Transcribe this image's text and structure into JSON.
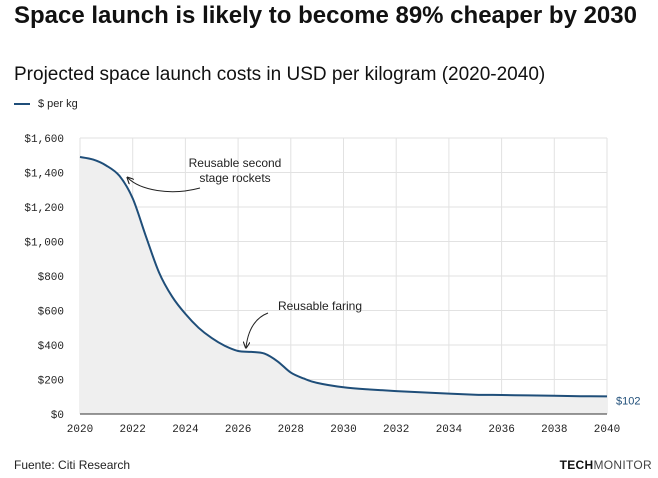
{
  "header": {
    "title": "Space launch is likely to become 89% cheaper by 2030",
    "subtitle": "Projected space launch costs in USD per kilogram (2020-2040)"
  },
  "legend": {
    "label": "$ per kg"
  },
  "footer": {
    "source": "Fuente: Citi Research",
    "brand_bold": "TECH",
    "brand_light": "MONITOR"
  },
  "colors": {
    "line": "#1f4e79",
    "area": "#efefef",
    "grid": "#e2e2e2",
    "axis": "#333333"
  },
  "chart_data": {
    "type": "area",
    "title": "Projected space launch costs in USD per kilogram (2020-2040)",
    "xlabel": "",
    "ylabel": "",
    "xlim": [
      2020,
      2040
    ],
    "ylim": [
      0,
      1600
    ],
    "x_ticks": [
      2020,
      2022,
      2024,
      2026,
      2028,
      2030,
      2032,
      2034,
      2036,
      2038,
      2040
    ],
    "x_tick_labels": [
      "2020",
      "2022",
      "2024",
      "2026",
      "2028",
      "2030",
      "2032",
      "2034",
      "2036",
      "2038",
      "2040"
    ],
    "y_ticks": [
      0,
      200,
      400,
      600,
      800,
      1000,
      1200,
      1400,
      1600
    ],
    "y_tick_labels": [
      "$0",
      "$200",
      "$400",
      "$600",
      "$800",
      "$1,000",
      "$1,200",
      "$1,400",
      "$1,600"
    ],
    "grid": true,
    "series": [
      {
        "name": "$ per kg",
        "x": [
          2020,
          2020.5,
          2021,
          2021.5,
          2022,
          2022.5,
          2023,
          2023.5,
          2024,
          2024.5,
          2025,
          2025.5,
          2026,
          2026.5,
          2027,
          2027.5,
          2028,
          2028.5,
          2029,
          2030,
          2031,
          2032,
          2033,
          2034,
          2035,
          2036,
          2037,
          2038,
          2039,
          2040
        ],
        "values": [
          1490,
          1475,
          1440,
          1380,
          1250,
          1030,
          820,
          680,
          580,
          500,
          440,
          395,
          365,
          360,
          350,
          305,
          240,
          205,
          180,
          155,
          142,
          133,
          125,
          118,
          112,
          110,
          108,
          106,
          103,
          102
        ]
      }
    ],
    "annotations": [
      {
        "label_lines": [
          "Reusable second",
          "stage rockets"
        ],
        "x": 2021.7,
        "y": 1380
      },
      {
        "label_lines": [
          "Reusable faring"
        ],
        "x": 2026.3,
        "y": 375
      }
    ],
    "end_label": "$102"
  }
}
